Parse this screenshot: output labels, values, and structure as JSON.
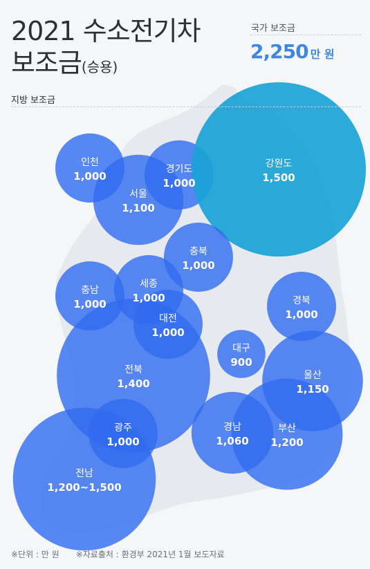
{
  "header": {
    "title_line1": "2021 수소전기차",
    "title_line2": "보조금",
    "title_suffix": "(승용)"
  },
  "national": {
    "label": "국가 보조금",
    "amount": "2,250",
    "unit": "만 원"
  },
  "local_label": "지방 보조금",
  "footer": {
    "unit_note": "※단위 : 만 원",
    "source_note": "※자료출처 : 환경부 2021년 1월 보도자료"
  },
  "colors": {
    "accent": "#3f86e0",
    "bubble_main": "#2f6cf0",
    "bubble_teal": "#1aa3d6",
    "map": "#e6e9ed"
  },
  "chart_data": {
    "type": "bubble",
    "unit": "만 원",
    "regions": [
      {
        "name": "인천",
        "label": "1,000",
        "value": 1000
      },
      {
        "name": "서울",
        "label": "1,100",
        "value": 1100
      },
      {
        "name": "경기도",
        "label": "1,000",
        "value": 1000
      },
      {
        "name": "강원도",
        "label": "1,500",
        "value": 1500
      },
      {
        "name": "충북",
        "label": "1,000",
        "value": 1000
      },
      {
        "name": "세종",
        "label": "1,000",
        "value": 1000
      },
      {
        "name": "충남",
        "label": "1,000",
        "value": 1000
      },
      {
        "name": "대전",
        "label": "1,000",
        "value": 1000
      },
      {
        "name": "경북",
        "label": "1,000",
        "value": 1000
      },
      {
        "name": "대구",
        "label": "900",
        "value": 900
      },
      {
        "name": "전북",
        "label": "1,400",
        "value": 1400
      },
      {
        "name": "울산",
        "label": "1,150",
        "value": 1150
      },
      {
        "name": "광주",
        "label": "1,000",
        "value": 1000
      },
      {
        "name": "경남",
        "label": "1,060",
        "value": 1060
      },
      {
        "name": "부산",
        "label": "1,200",
        "value": 1200
      },
      {
        "name": "전남",
        "label": "1,200~1,500",
        "value": 1350
      }
    ]
  }
}
